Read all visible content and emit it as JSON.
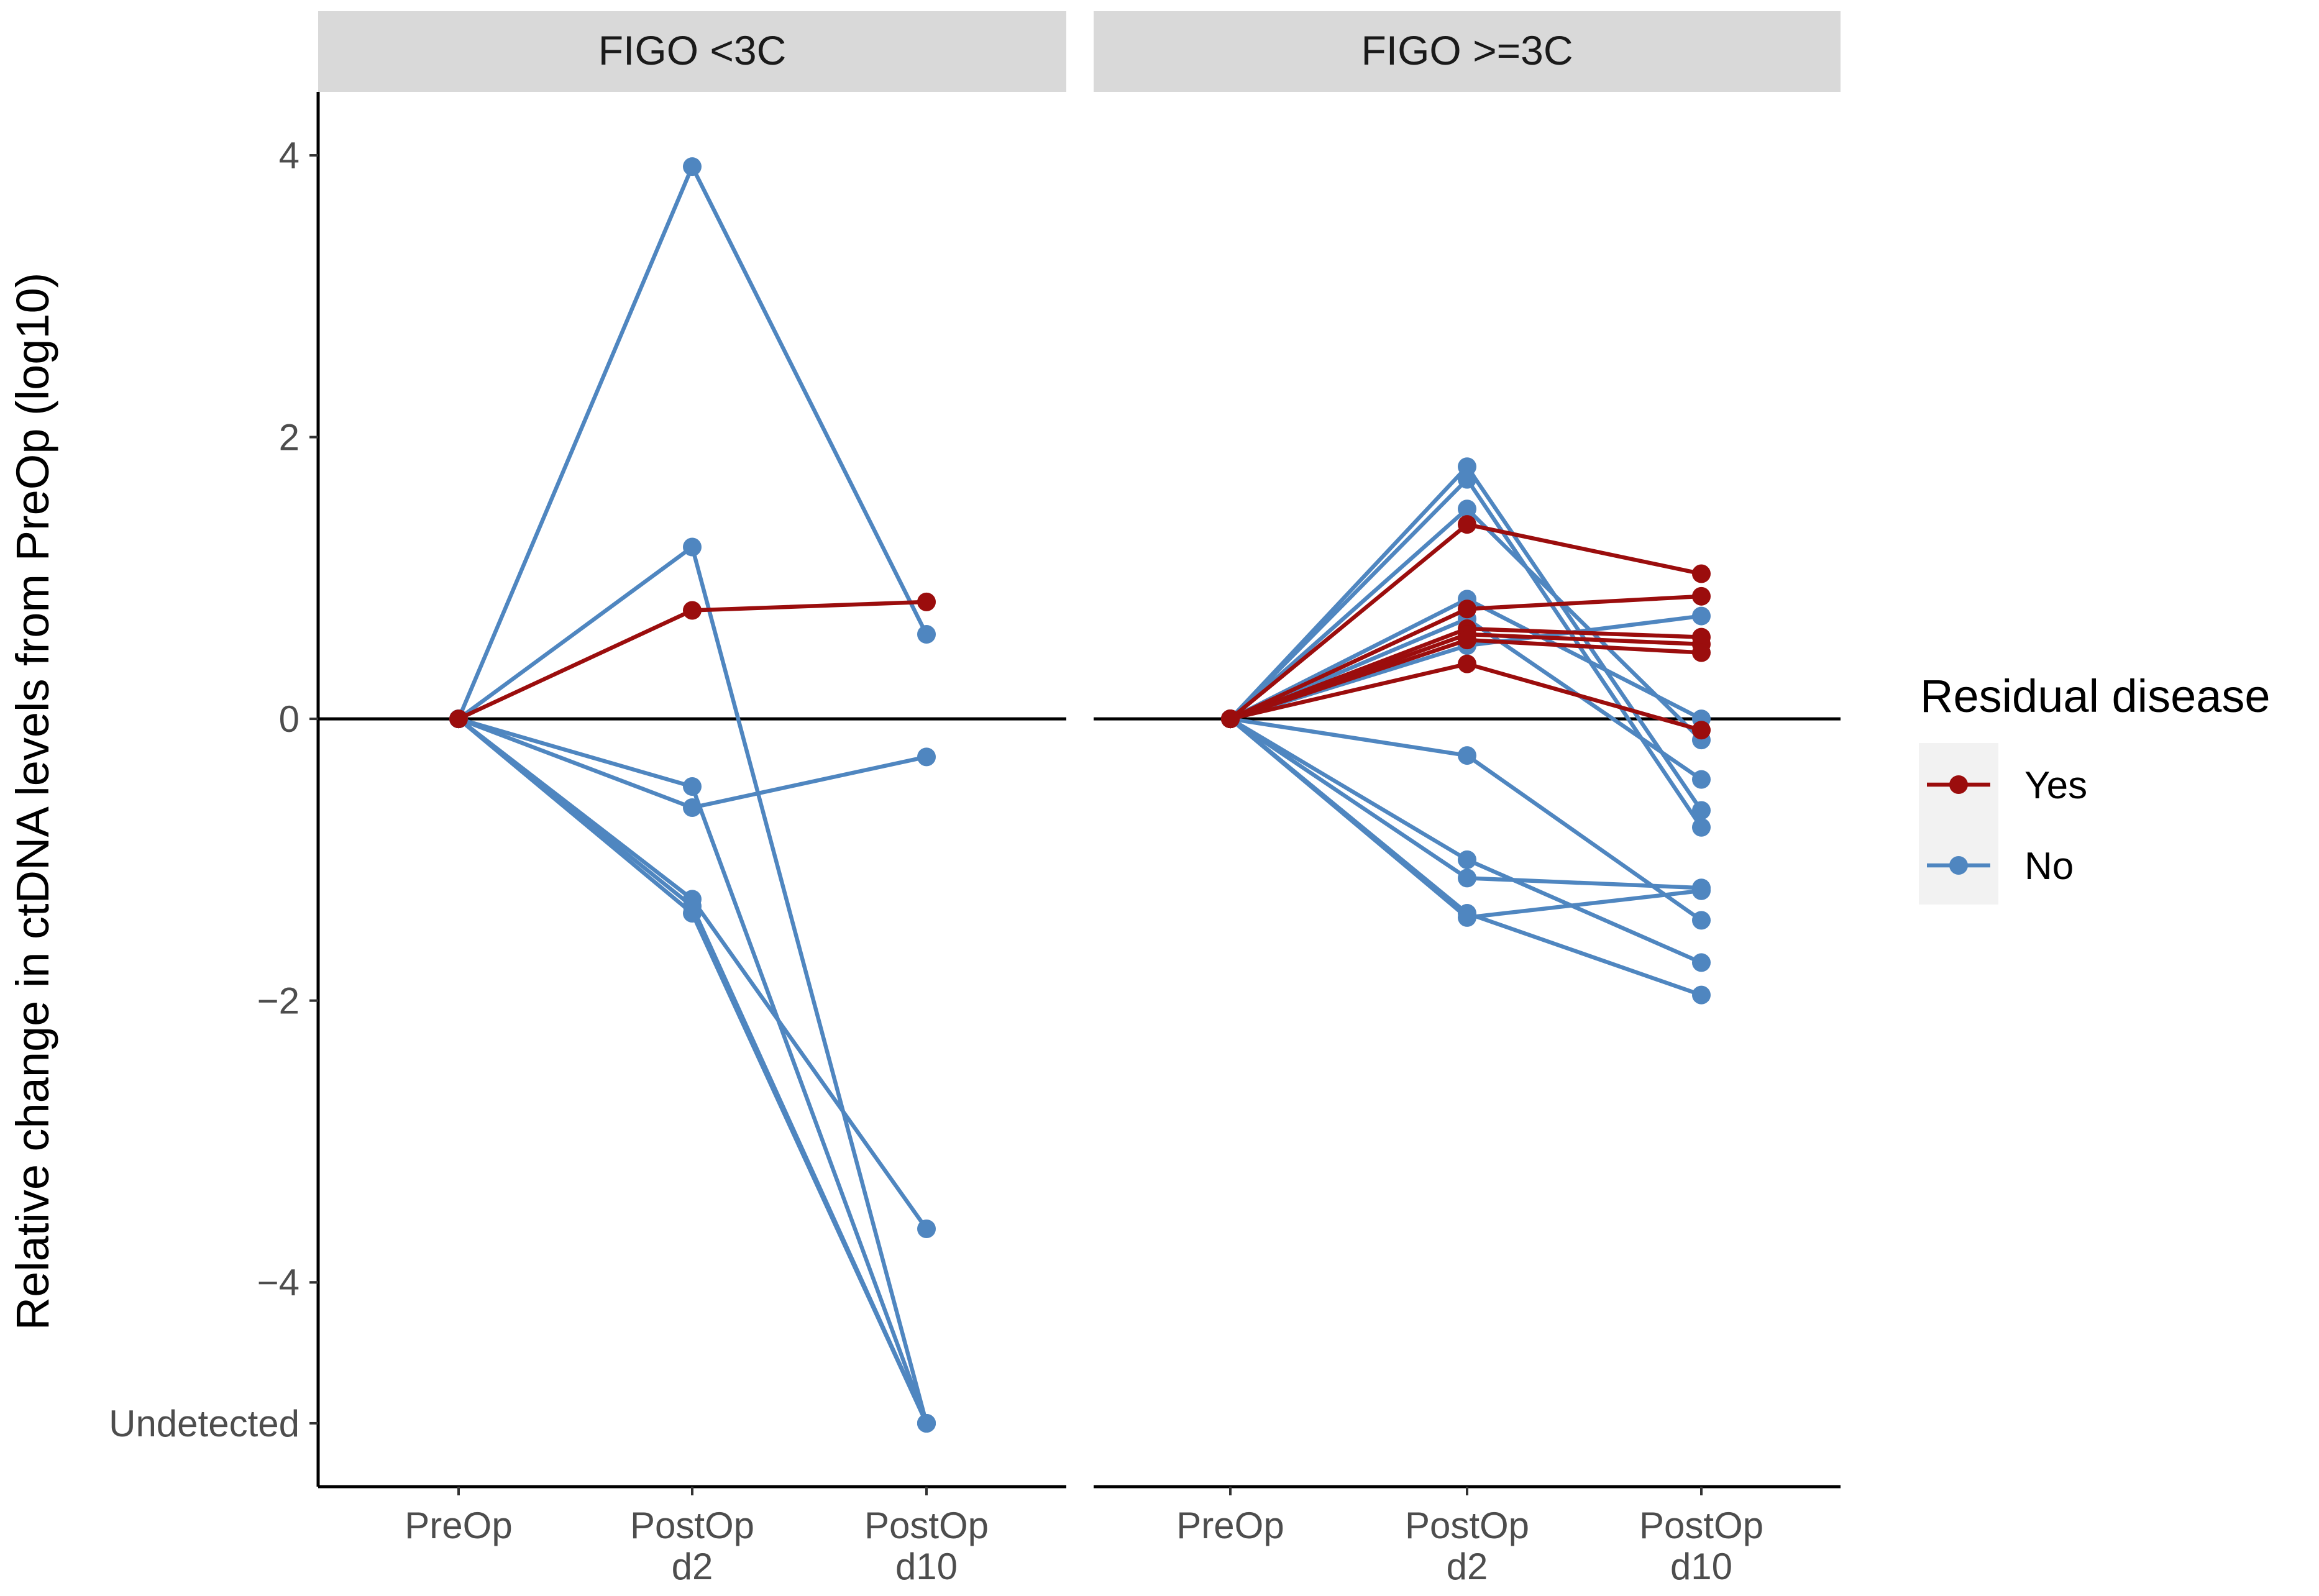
{
  "chart_data": {
    "type": "line",
    "ylabel": "Relative change in ctDNA levels from PreOp (log10)",
    "x_categories": [
      [
        "PreOp"
      ],
      [
        "PostOp",
        "d2"
      ],
      [
        "PostOp",
        "d10"
      ]
    ],
    "y_ticks": [
      {
        "value": -5,
        "label": "Undetected"
      },
      {
        "value": -4,
        "label": "−4"
      },
      {
        "value": -2,
        "label": "−2"
      },
      {
        "value": 0,
        "label": "0"
      },
      {
        "value": 2,
        "label": "2"
      },
      {
        "value": 4,
        "label": "4"
      }
    ],
    "ylim": [
      -5.45,
      4.45
    ],
    "reference_line": 0,
    "legend": {
      "title": "Residual disease",
      "entries": [
        {
          "key": "Yes",
          "label": "Yes",
          "color": "#9b0d0d"
        },
        {
          "key": "No",
          "label": "No",
          "color": "#4f86c0"
        }
      ]
    },
    "panels": [
      {
        "title": "FIGO <3C",
        "series": [
          {
            "residual": "No",
            "values": [
              0,
              3.92,
              0.6
            ]
          },
          {
            "residual": "No",
            "values": [
              0,
              1.22,
              -5.0
            ]
          },
          {
            "residual": "No",
            "values": [
              0,
              -0.48,
              -5.0
            ]
          },
          {
            "residual": "No",
            "values": [
              0,
              -0.63,
              -0.27
            ]
          },
          {
            "residual": "No",
            "values": [
              0,
              -1.28,
              -3.62
            ]
          },
          {
            "residual": "No",
            "values": [
              0,
              -1.33,
              -5.0
            ]
          },
          {
            "residual": "No",
            "values": [
              0,
              -1.38,
              -5.0
            ]
          },
          {
            "residual": "Yes",
            "values": [
              0,
              0.77,
              0.83
            ]
          }
        ]
      },
      {
        "title": "FIGO >=3C",
        "series": [
          {
            "residual": "No",
            "values": [
              0,
              1.79,
              -0.65
            ]
          },
          {
            "residual": "No",
            "values": [
              0,
              1.7,
              -0.77
            ]
          },
          {
            "residual": "No",
            "values": [
              0,
              1.49,
              -0.15
            ]
          },
          {
            "residual": "No",
            "values": [
              0,
              0.85,
              0.0
            ]
          },
          {
            "residual": "No",
            "values": [
              0,
              0.71,
              -0.43
            ]
          },
          {
            "residual": "No",
            "values": [
              0,
              0.52,
              0.73
            ]
          },
          {
            "residual": "No",
            "values": [
              0,
              -0.26,
              -1.43
            ]
          },
          {
            "residual": "No",
            "values": [
              0,
              -1.0,
              -1.73
            ]
          },
          {
            "residual": "No",
            "values": [
              0,
              -1.13,
              -1.2
            ]
          },
          {
            "residual": "No",
            "values": [
              0,
              -1.38,
              -1.96
            ]
          },
          {
            "residual": "No",
            "values": [
              0,
              -1.41,
              -1.22
            ]
          },
          {
            "residual": "Yes",
            "values": [
              0,
              1.38,
              1.03
            ]
          },
          {
            "residual": "Yes",
            "values": [
              0,
              0.78,
              0.87
            ]
          },
          {
            "residual": "Yes",
            "values": [
              0,
              0.64,
              0.58
            ]
          },
          {
            "residual": "Yes",
            "values": [
              0,
              0.6,
              0.53
            ]
          },
          {
            "residual": "Yes",
            "values": [
              0,
              0.56,
              0.47
            ]
          },
          {
            "residual": "Yes",
            "values": [
              0,
              0.39,
              -0.08
            ]
          }
        ]
      }
    ]
  }
}
